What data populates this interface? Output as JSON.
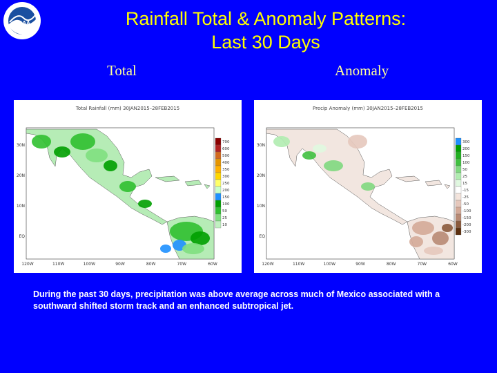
{
  "title": {
    "line1": "Rainfall Total & Anomaly Patterns:",
    "line2": "Last 30 Days"
  },
  "panels": {
    "total": {
      "label": "Total",
      "map_title": "Total Rainfall (mm) 30JAN2015–28FEB2015",
      "legend": [
        "700",
        "600",
        "500",
        "400",
        "350",
        "300",
        "250",
        "200",
        "150",
        "100",
        "50",
        "25",
        "10"
      ],
      "legend_colors": [
        "#8b0000",
        "#b22222",
        "#d2691e",
        "#e69500",
        "#ffb000",
        "#ffd700",
        "#ffff66",
        "#c8ffc8",
        "#1e90ff",
        "#00a000",
        "#30c030",
        "#80e080",
        "#c0f0c0"
      ],
      "lat_labels": [
        "30N",
        "20N",
        "10N",
        "EQ"
      ],
      "lon_labels": [
        "120W",
        "110W",
        "100W",
        "90W",
        "80W",
        "70W",
        "60W"
      ]
    },
    "anomaly": {
      "label": "Anomaly",
      "map_title": "Precip Anomaly (mm) 30JAN2015–28FEB2015",
      "legend": [
        "300",
        "200",
        "150",
        "100",
        "50",
        "25",
        "15",
        "-15",
        "-25",
        "-50",
        "-100",
        "-150",
        "-200",
        "-300"
      ],
      "legend_colors": [
        "#1e90ff",
        "#00a000",
        "#20b020",
        "#40c040",
        "#80d880",
        "#b0ecb0",
        "#e0f8e0",
        "#ffffff",
        "#f4e4dc",
        "#e6c8bc",
        "#d4aa98",
        "#b88a74",
        "#8b5a3c",
        "#5c3010"
      ],
      "lat_labels": [
        "30N",
        "20N",
        "10N",
        "EQ"
      ],
      "lon_labels": [
        "120W",
        "110W",
        "100W",
        "90W",
        "80W",
        "70W",
        "60W"
      ]
    }
  },
  "caption": "During the past 30 days, precipitation was above average across much of Mexico associated with a southward shifted storm track and an enhanced subtropical jet.",
  "logo": {
    "text": "NOAA",
    "icon": "noaa-logo-icon"
  }
}
